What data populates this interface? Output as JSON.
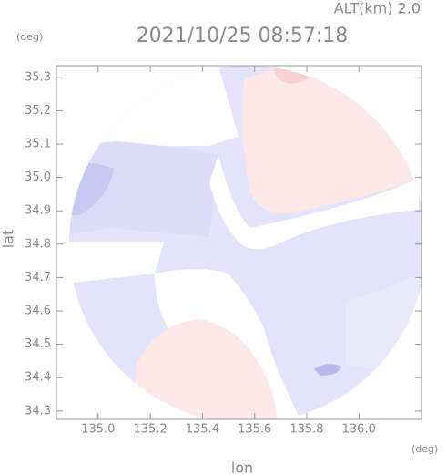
{
  "chart_data": {
    "type": "radar-map",
    "title": "2021/10/25 08:57:18",
    "annotation": "ALT(km) 2.0",
    "x_label": "lon",
    "y_label": "lat",
    "x_unit": "(deg)",
    "y_unit": "(deg)",
    "xlim": [
      134.84,
      136.24
    ],
    "ylim": [
      34.275,
      35.335
    ],
    "xticks": [
      {
        "value": 135.0,
        "label": "135.0"
      },
      135.2,
      135.4,
      135.6,
      135.8,
      {
        "value": 136.0,
        "label": "136.0"
      }
    ],
    "yticks": [
      34.3,
      34.4,
      34.5,
      34.6,
      34.7,
      34.8,
      34.9,
      {
        "value": 35.0,
        "label": "35.0"
      },
      35.1,
      35.2,
      35.3
    ]
  }
}
